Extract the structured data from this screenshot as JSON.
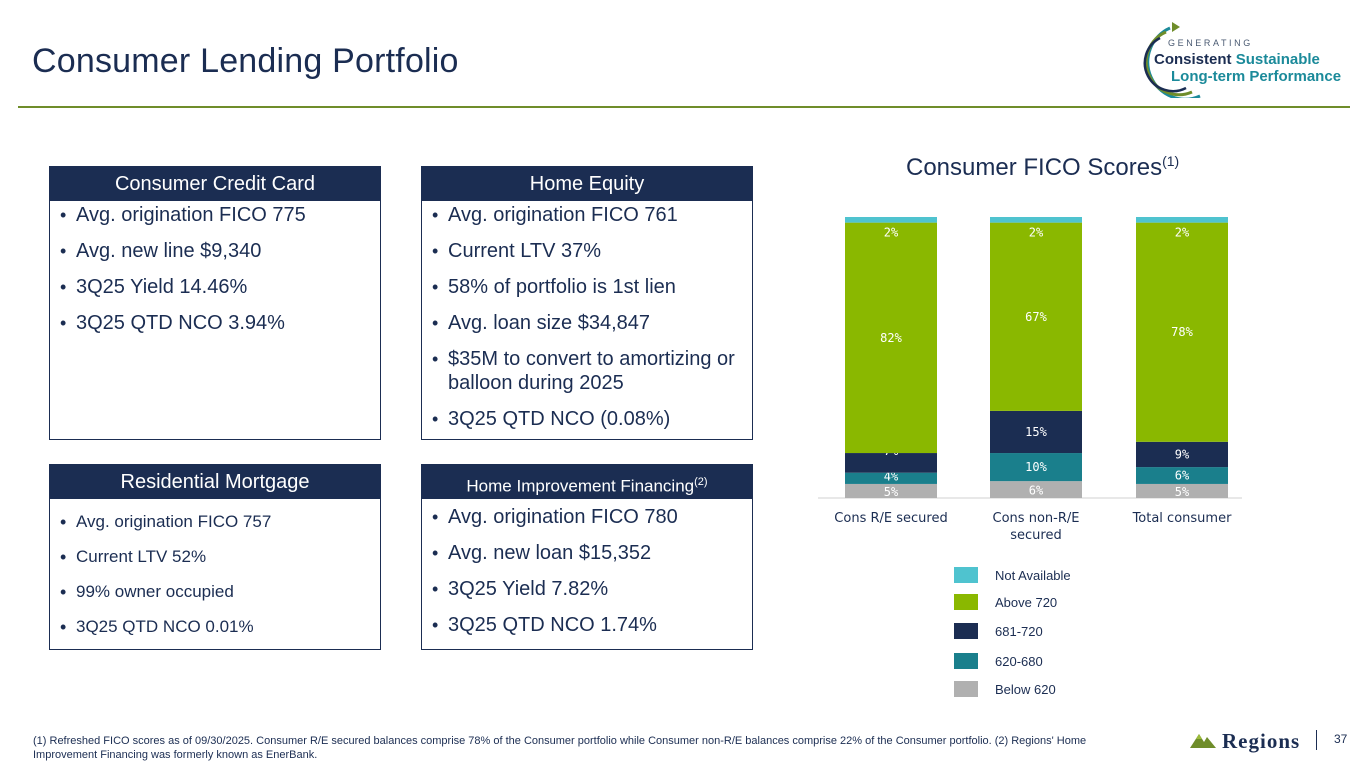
{
  "header": {
    "title": "Consumer Lending Portfolio"
  },
  "logo": {
    "generating": "GENERATING",
    "consistent": "Consistent",
    "sustainable": "Sustainable",
    "long_term": "Long-term Performance"
  },
  "cards": {
    "credit_card": {
      "title": "Consumer Credit Card",
      "items": [
        "Avg. origination FICO 775",
        "Avg. new line $9,340",
        "3Q25 Yield 14.46%",
        "3Q25 QTD NCO 3.94%"
      ]
    },
    "home_equity": {
      "title": "Home Equity",
      "items": [
        "Avg. origination FICO 761",
        "Current LTV 37%",
        "58% of portfolio is 1st lien",
        "Avg. loan size $34,847",
        "$35M to convert to amortizing or balloon during 2025",
        "3Q25 QTD NCO (0.08%)"
      ]
    },
    "residential_mortgage": {
      "title": "Residential Mortgage",
      "items": [
        "Avg. origination FICO 757",
        "Current LTV 52%",
        "99% owner occupied",
        "3Q25 QTD NCO 0.01%"
      ]
    },
    "home_improvement": {
      "title": "Home Improvement Financing",
      "title_sup": "(2)",
      "items": [
        "Avg. origination FICO 780",
        "Avg. new loan $15,352",
        "3Q25 Yield 7.82%",
        "3Q25 QTD NCO 1.74%"
      ]
    }
  },
  "colors": {
    "navy": "#1b2d52",
    "accent_green": "#6f8d2a",
    "not_available": "#4fc3cf",
    "above_720": "#8ab800",
    "fico_681_720": "#1b2d52",
    "fico_620_680": "#1a7f8c",
    "below_620": "#b0b0b0"
  },
  "chart_data": {
    "type": "bar",
    "stacked": true,
    "title": "Consumer FICO Scores",
    "title_sup": "(1)",
    "categories": [
      "Cons R/E secured",
      "Cons non-R/E secured",
      "Total consumer"
    ],
    "ylim": [
      0,
      100
    ],
    "grid": false,
    "legend_position": "bottom-right",
    "series": [
      {
        "name": "Below 620",
        "color": "#b0b0b0",
        "values": [
          5,
          6,
          5
        ],
        "labels": [
          "5%",
          "6%",
          "5%"
        ]
      },
      {
        "name": "620-680",
        "color": "#1a7f8c",
        "values": [
          4,
          10,
          6
        ],
        "labels": [
          "4%",
          "10%",
          "6%"
        ]
      },
      {
        "name": "681-720",
        "color": "#1b2d52",
        "values": [
          7,
          15,
          9
        ],
        "labels": [
          "7%",
          "15%",
          "9%"
        ]
      },
      {
        "name": "Above 720",
        "color": "#8ab800",
        "values": [
          82,
          67,
          78
        ],
        "labels": [
          "82%",
          "67%",
          "78%"
        ]
      },
      {
        "name": "Not Available",
        "color": "#4fc3cf",
        "values": [
          2,
          2,
          2
        ],
        "labels": [
          "2%",
          "2%",
          "2%"
        ]
      }
    ],
    "legend_order": [
      "Not Available",
      "Above 720",
      "681-720",
      "620-680",
      "Below 620"
    ]
  },
  "footnote": "(1) Refreshed FICO scores as of 09/30/2025. Consumer R/E secured balances comprise 78% of the Consumer portfolio while Consumer non-R/E balances comprise 22% of the Consumer portfolio. (2) Regions' Home Improvement Financing was formerly known as EnerBank.",
  "footer": {
    "brand": "Regions",
    "page_number": "37"
  }
}
